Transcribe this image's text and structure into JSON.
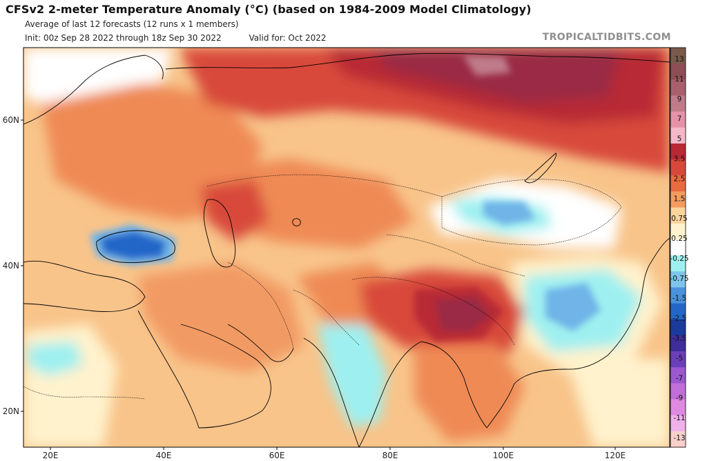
{
  "header": {
    "title": "CFSv2 2-meter Temperature Anomaly (°C) (based on 1984-2009 Model Climatology)",
    "subtitle": "Average of last 12 forecasts (12 runs x 1 members)",
    "init": "Init: 00z Sep 28 2022 through 18z Sep 30 2022",
    "valid": "Valid for: Oct 2022",
    "brand": "TROPICALTIDBITS.COM"
  },
  "map": {
    "lat_ticks": [
      "60N",
      "40N",
      "20N"
    ],
    "lon_ticks": [
      "20E",
      "40E",
      "60E",
      "80E",
      "100E",
      "120E"
    ]
  },
  "colorbar": {
    "labels": [
      "13",
      "11",
      "9",
      "7",
      "5",
      "3.5",
      "2.5",
      "1.5",
      "0.75",
      "0.25",
      "-0.25",
      "-0.75",
      "-1.5",
      "-2.5",
      "-3.5",
      "-5",
      "-7",
      "-9",
      "-11",
      "-13"
    ],
    "colors": [
      "#7a5a4a",
      "#8e4e56",
      "#a8606c",
      "#c07b8a",
      "#e592a9",
      "#f4b8c9",
      "#b82934",
      "#d8483a",
      "#e86a3f",
      "#f49b5e",
      "#fbd39b",
      "#fff2cc",
      "#ffffff",
      "#9ef0f0",
      "#7fc4ea",
      "#4a92dc",
      "#2466c8",
      "#1a3a9c",
      "#3e2d9a",
      "#6b3fb8",
      "#9b58cf",
      "#c06ed8",
      "#de8ae0",
      "#f0b0e8",
      "#f9d0cc"
    ]
  },
  "colors": {
    "ocean_base": "#ffffff",
    "land_base": "#f8c48a",
    "warm": "#ef8a55",
    "hot": "#d8483a",
    "very_hot": "#b82934",
    "extreme": "#9a2c45",
    "cold": "#9ef0f0",
    "colder": "#6fb4e8",
    "coldest": "#2466c8",
    "boundary": "#000000"
  }
}
